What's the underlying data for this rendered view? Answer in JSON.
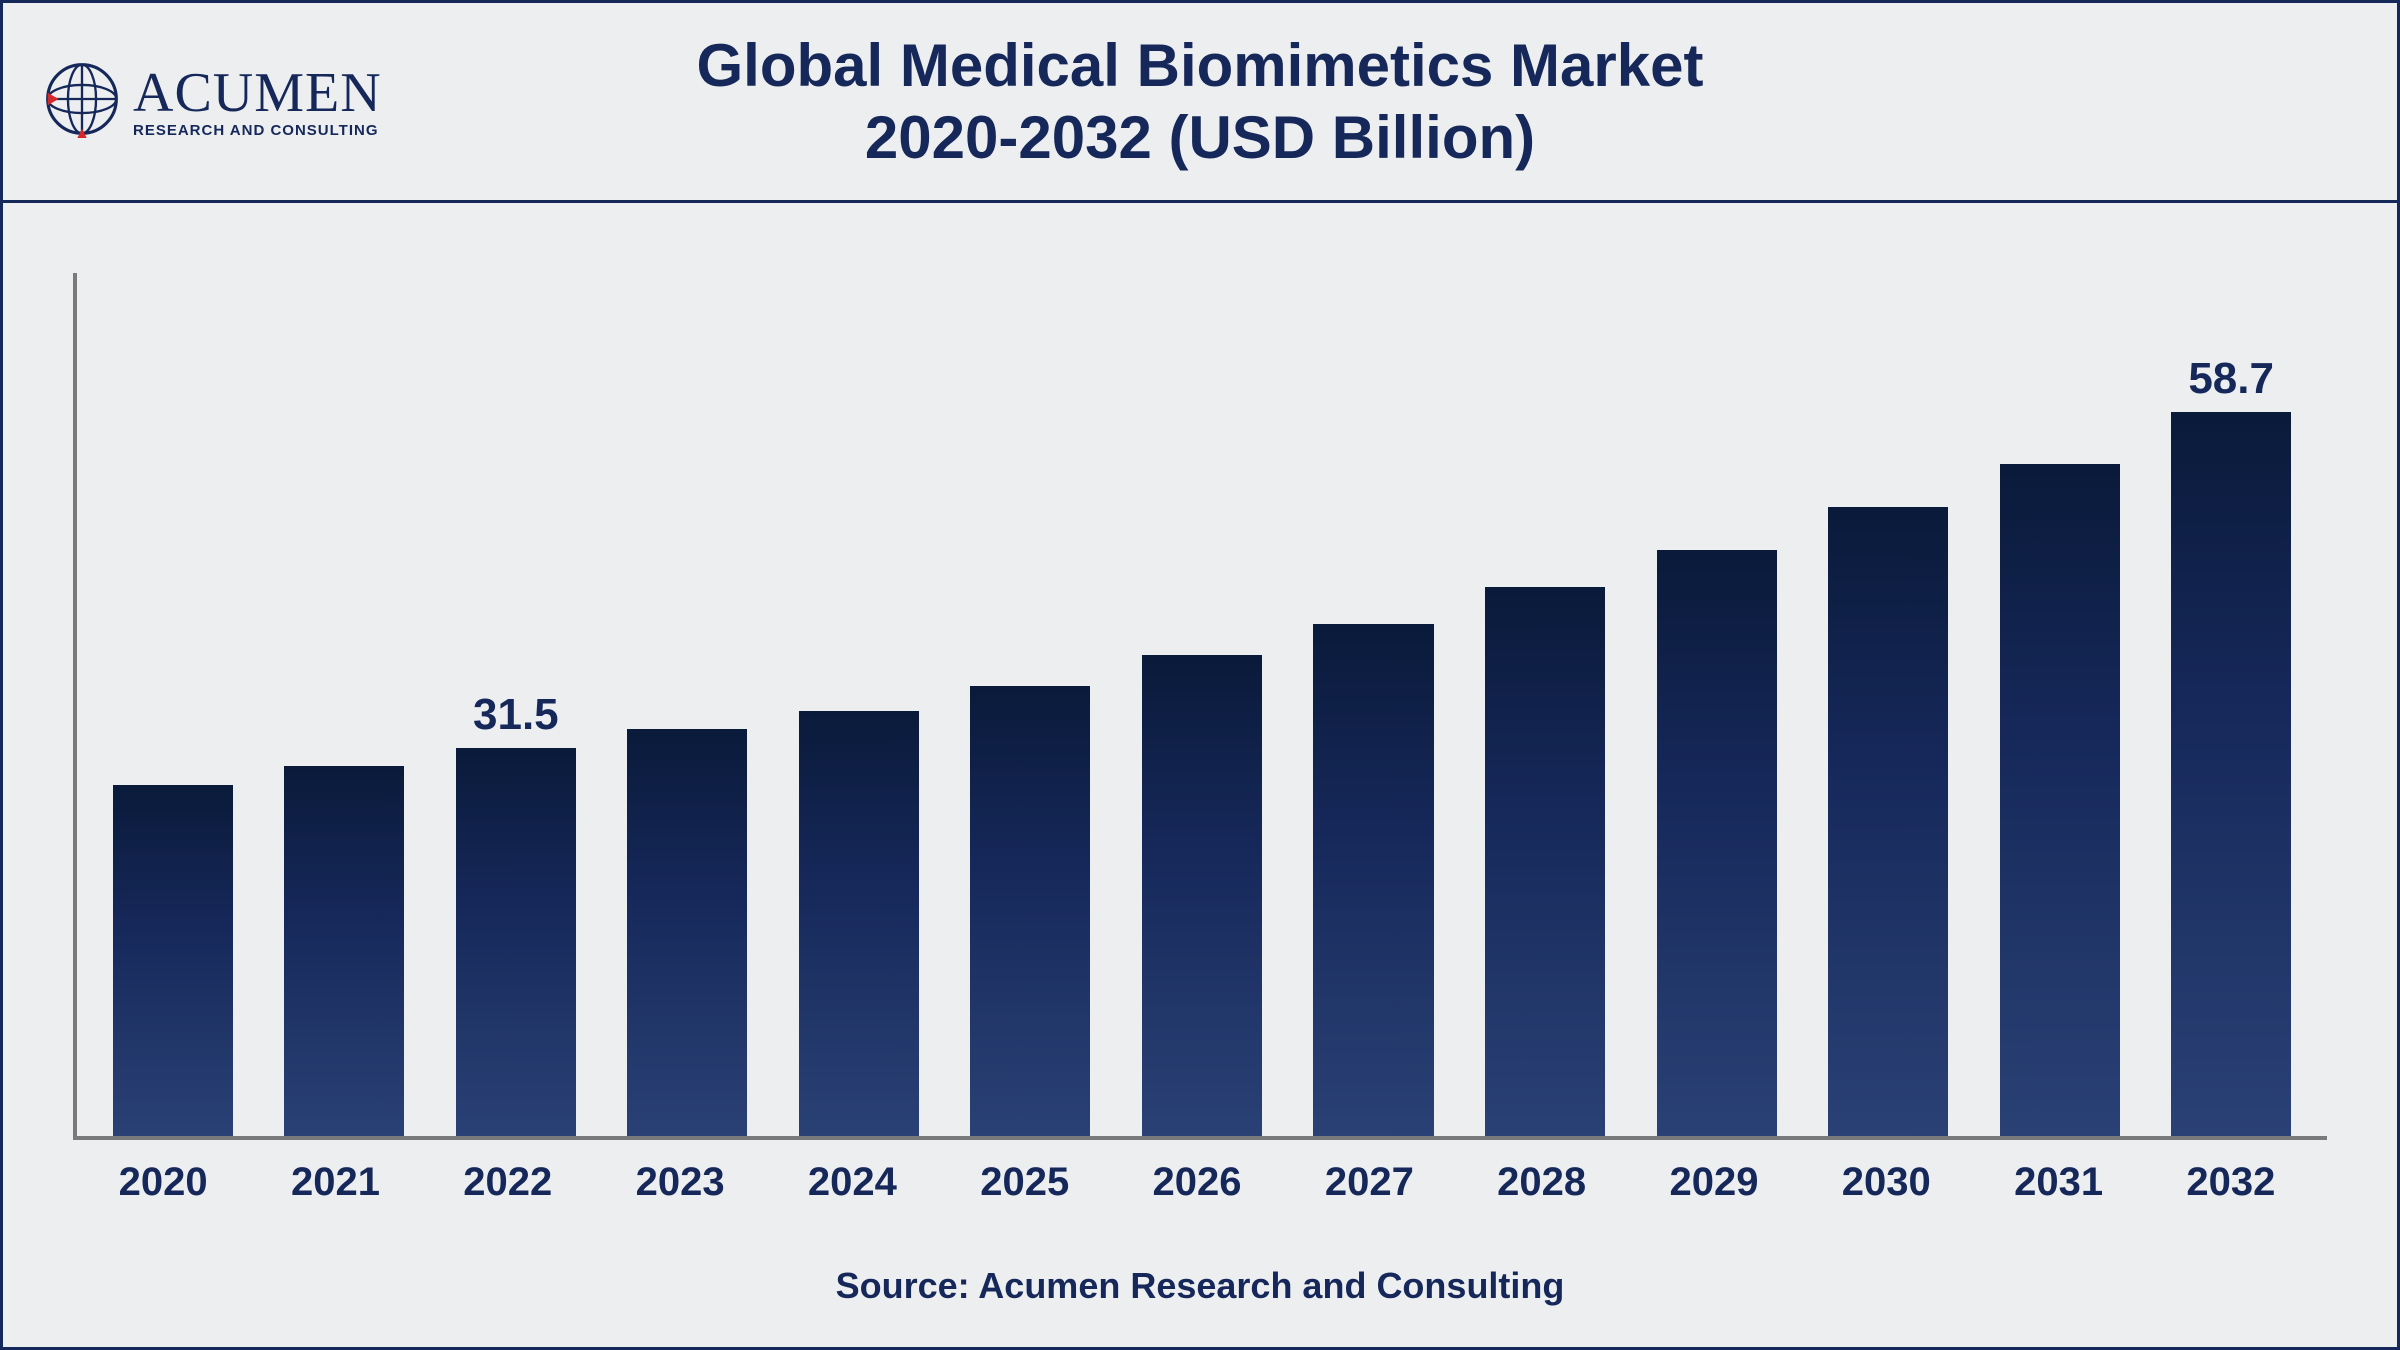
{
  "logo": {
    "main_text": "ACUMEN",
    "sub_text": "RESEARCH AND CONSULTING",
    "icon_name": "globe-icon",
    "globe_outline_color": "#16285a",
    "globe_accent_color": "#d62828"
  },
  "title": {
    "line1": "Global Medical Biomimetics Market",
    "line2": "2020-2032 (USD Billion)"
  },
  "chart": {
    "type": "bar",
    "categories": [
      "2020",
      "2021",
      "2022",
      "2023",
      "2024",
      "2025",
      "2026",
      "2027",
      "2028",
      "2029",
      "2030",
      "2031",
      "2032"
    ],
    "values": [
      28.5,
      30.0,
      31.5,
      33.0,
      34.5,
      36.5,
      39.0,
      41.5,
      44.5,
      47.5,
      51.0,
      54.5,
      58.7
    ],
    "value_labels": [
      "",
      "",
      "31.5",
      "",
      "",
      "",
      "",
      "",
      "",
      "",
      "",
      "",
      "58.7"
    ],
    "ylim": [
      0,
      70
    ],
    "bar_width_pct": 70,
    "bar_gradient_top": "#0a1a3a",
    "bar_gradient_mid": "#16285a",
    "bar_gradient_bottom": "#2a4175",
    "axis_color": "#7a7a7a",
    "background_color": "#eceef0",
    "border_color": "#16285a",
    "label_fontsize_pt": 40,
    "label_fontweight": 700,
    "label_color": "#16285a",
    "value_label_fontsize_pt": 44,
    "value_label_fontweight": 700,
    "value_label_color": "#16285a"
  },
  "source": "Source: Acumen Research and Consulting",
  "title_fontsize_pt": 60,
  "title_fontweight": 700,
  "title_color": "#16285a",
  "source_fontsize_pt": 36,
  "source_fontweight": 700,
  "source_color": "#16285a"
}
